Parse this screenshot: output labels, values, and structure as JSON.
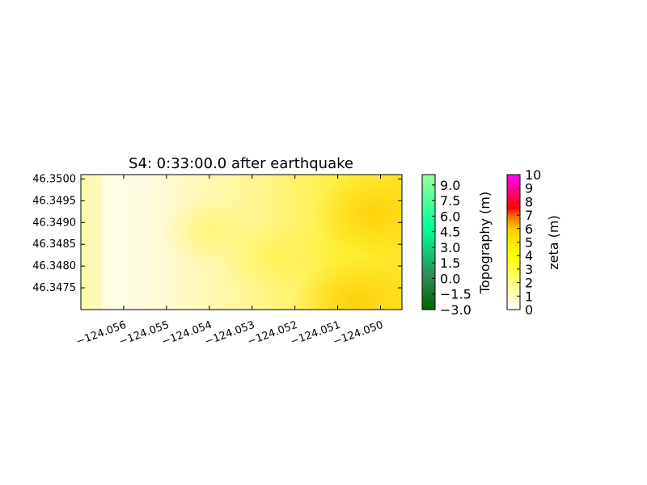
{
  "chart_data": [
    {
      "type": "heatmap",
      "title": "S4: 0:33:00.0 after earthquake",
      "x_ticks": [
        "−124.056",
        "−124.055",
        "−124.054",
        "−124.053",
        "−124.052",
        "−124.051",
        "−124.050"
      ],
      "x_tick_values": [
        -124.056,
        -124.055,
        -124.054,
        -124.053,
        -124.052,
        -124.051,
        -124.05
      ],
      "y_ticks": [
        "46.3500",
        "46.3495",
        "46.3490",
        "46.3485",
        "46.3480",
        "46.3475"
      ],
      "y_tick_values": [
        46.35,
        46.3495,
        46.349,
        46.3485,
        46.348,
        46.3475
      ],
      "xlim": [
        -124.057,
        -124.0495
      ],
      "ylim": [
        46.347,
        46.3501
      ],
      "field": "zeta",
      "description_colors": {
        "low": "#fffde0",
        "mid": "#ffff66",
        "high": "#ffcc00"
      },
      "zeta_field_regions": [
        {
          "x": -124.0563,
          "y": 46.3486,
          "zeta": 1.5
        },
        {
          "x": -124.054,
          "y": 46.3488,
          "zeta": 3.0
        },
        {
          "x": -124.0525,
          "y": 46.3482,
          "zeta": 3.5
        },
        {
          "x": -124.0505,
          "y": 46.3485,
          "zeta": 4.5
        },
        {
          "x": -124.0502,
          "y": 46.3492,
          "zeta": 5.0
        },
        {
          "x": -124.0506,
          "y": 46.3472,
          "zeta": 5.5
        }
      ]
    },
    {
      "type": "colorbar",
      "label": "Topography (m)",
      "ticks": [
        "9.0",
        "7.5",
        "6.0",
        "4.5",
        "3.0",
        "1.5",
        "0.0",
        "−1.5",
        "−3.0"
      ],
      "tick_values": [
        9.0,
        7.5,
        6.0,
        4.5,
        3.0,
        1.5,
        0.0,
        -1.5,
        -3.0
      ],
      "range": [
        -3.0,
        10.0
      ],
      "colors": [
        "#006400",
        "#2e8b57",
        "#00ff99",
        "#99ff99"
      ]
    },
    {
      "type": "colorbar",
      "label": "zeta (m)",
      "ticks": [
        "10",
        "9",
        "8",
        "7",
        "6",
        "5",
        "4",
        "3",
        "2",
        "1",
        "0"
      ],
      "tick_values": [
        10,
        9,
        8,
        7,
        6,
        5,
        4,
        3,
        2,
        1,
        0
      ],
      "range": [
        0,
        10
      ],
      "colors": [
        "#ffffff",
        "#ffff00",
        "#ffcc00",
        "#ff6600",
        "#ff0000",
        "#ff00ff"
      ]
    }
  ]
}
